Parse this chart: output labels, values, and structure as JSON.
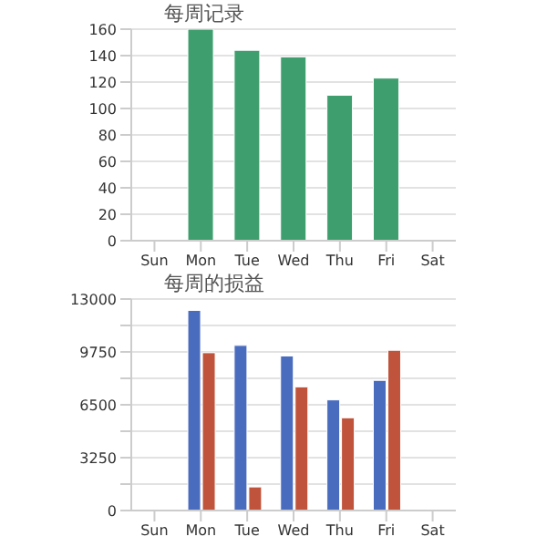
{
  "chart_data": [
    {
      "type": "bar",
      "title": "每周记录",
      "categories": [
        "Sun",
        "Mon",
        "Tue",
        "Wed",
        "Thu",
        "Fri",
        "Sat"
      ],
      "values": [
        null,
        160,
        144,
        139,
        110,
        123,
        null
      ],
      "color": "#3f9e6e",
      "ylim": [
        0,
        160
      ],
      "yticks": [
        0,
        20,
        40,
        60,
        80,
        100,
        120,
        140,
        160
      ],
      "grid": "y"
    },
    {
      "type": "bar",
      "title": "每周的损益",
      "categories": [
        "Sun",
        "Mon",
        "Tue",
        "Wed",
        "Thu",
        "Fri",
        "Sat"
      ],
      "series": [
        {
          "color": "#4a6cbf",
          "values": [
            null,
            12300,
            10150,
            9500,
            6800,
            8000,
            null
          ]
        },
        {
          "color": "#c0533b",
          "values": [
            null,
            9700,
            1450,
            7600,
            5700,
            9850,
            null
          ]
        }
      ],
      "ylim": [
        0,
        13000
      ],
      "yticks": [
        0,
        {
          "value": 1625,
          "label": null
        },
        3250,
        {
          "value": 4875,
          "label": null
        },
        6500,
        {
          "value": 8125,
          "label": null
        },
        9750,
        {
          "value": 11375,
          "label": null
        },
        13000
      ],
      "grid": "y"
    }
  ]
}
